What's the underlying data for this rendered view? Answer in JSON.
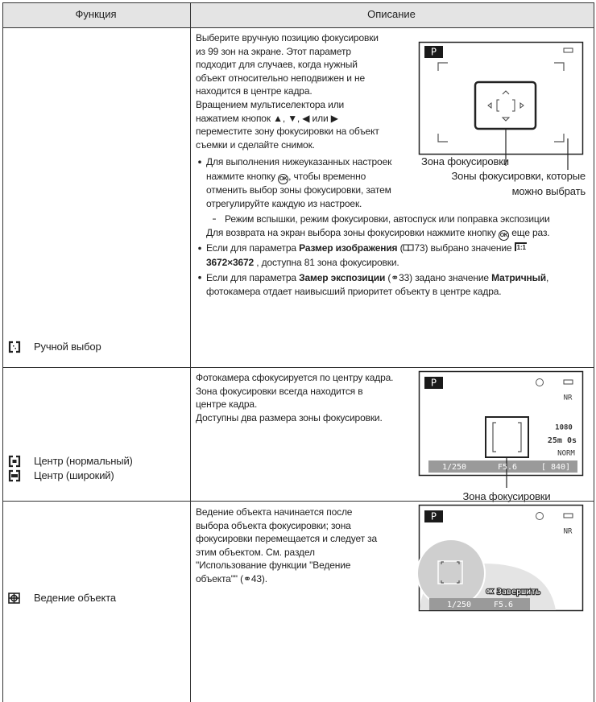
{
  "header": {
    "function": "Функция",
    "description": "Описание"
  },
  "rows": [
    {
      "function": [
        "Ручной выбор"
      ],
      "intro": [
        "Выберите вручную позицию фокусировки",
        "из 99 зон на экране. Этот параметр",
        "подходит для случаев, когда нужный",
        "объект относительно неподвижен и не",
        "находится в центре кадра.",
        "Вращением мультиселектора или",
        "нажатием кнопок ▲, ▼, ◀ или ▶",
        "переместите зону фокусировки на объект",
        "съемки и сделайте снимок."
      ],
      "bullets": [
        {
          "lines": [
            [
              "Для выполнения нижеуказанных настроек"
            ],
            [
              "нажмите кнопку ",
              {
                "t": "OK",
                "ok": true
              },
              ", чтобы временно"
            ],
            [
              "отменить выбор зоны фокусировки, затем"
            ],
            [
              "отрегулируйте каждую из настроек."
            ]
          ],
          "sub": [
            "Режим вспышки, режим фокусировки, автоспуск или поправка экспозиции"
          ],
          "after": [
            [
              "Для возврата на экран выбора зоны фокусировки нажмите кнопку ",
              {
                "t": "OK",
                "ok": true
              },
              " еще раз."
            ]
          ]
        },
        {
          "lines": [
            [
              "Если для параметра ",
              {
                "t": "Размер изображения",
                "b": true
              },
              " (",
              {
                "book": true
              },
              "73) выбрано значение ",
              {
                "t": "1:1",
                "size": true
              }
            ],
            [
              {
                "t": "3672×3672",
                "b": true
              },
              " , доступна 81 зона фокусировки."
            ]
          ]
        },
        {
          "lines": [
            [
              "Если для параметра ",
              {
                "t": "Замер экспозиции",
                "b": true
              },
              " (⚭33) задано значение ",
              {
                "t": "Матричный",
                "b": true
              },
              ","
            ],
            [
              "фотокамера отдает наивысший приоритет объекту в центре кадра."
            ]
          ]
        }
      ],
      "screen": {
        "mode": "P"
      },
      "callouts": [
        "Зона фокусировки",
        "Зоны фокусировки, которые",
        "можно выбрать"
      ]
    },
    {
      "function": [
        "Центр (нормальный)",
        "Центр (широкий)"
      ],
      "intro": [
        "Фотокамера сфокусируется по центру кадра.",
        "Зона фокусировки всегда находится в",
        "центре кадра.",
        "Доступны два размера зоны фокусировки."
      ],
      "screen": {
        "mode": "P",
        "nr": "NR",
        "video": "1080",
        "remaining": "25m 0s",
        "quality": "NORM",
        "shutter": "1/250",
        "aperture": "F5.6",
        "shots": "[ 840]"
      },
      "callouts": [
        "Зона фокусировки"
      ]
    },
    {
      "function": [
        "Ведение объекта"
      ],
      "intro": [
        "Ведение объекта начинается после",
        "выбора объекта фокусировки; зона",
        "фокусировки перемещается и следует за",
        "этим объектом. См. раздел",
        "\"Использование функции \"Ведение",
        "объекта\"\" (⚭43)."
      ],
      "screen": {
        "mode": "P",
        "nr": "NR",
        "ok": "OK",
        "end": "Завершить",
        "shutter": "1/250",
        "aperture": "F5.6"
      }
    }
  ]
}
